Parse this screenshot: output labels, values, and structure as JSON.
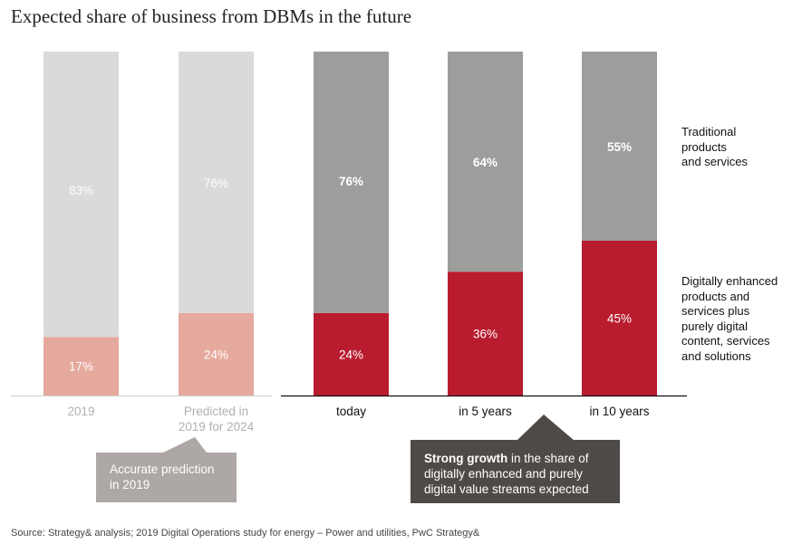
{
  "chart_data": {
    "type": "bar",
    "stacked": true,
    "title": "Expected share of business from DBMs in the future",
    "categories": [
      "2019",
      "Predicted in\n2019 for 2024",
      "today",
      "in 5 years",
      "in 10 years"
    ],
    "series": [
      {
        "name": "Digitally enhanced products and services plus purely digital content, services and solutions",
        "values": [
          17,
          24,
          24,
          36,
          45
        ]
      },
      {
        "name": "Traditional products and services",
        "values": [
          83,
          76,
          76,
          64,
          55
        ]
      }
    ],
    "ylim": [
      0,
      100
    ],
    "value_labels_suffix": "%",
    "colors": {
      "past_digital": "#e6a99d",
      "past_traditional": "#dadada",
      "digital": "#b81c2e",
      "traditional": "#9d9d9c",
      "past_label": "#b0b0b0",
      "label": "#111111"
    },
    "past_count": 2,
    "legend": {
      "traditional": "Traditional\nproducts\nand services",
      "digital": "Digitally enhanced\nproducts and\nservices plus\npurely digital\ncontent, services\nand solutions"
    }
  },
  "callouts": {
    "prediction": "Accurate prediction\nin 2019",
    "growth_bold": "Strong growth",
    "growth_rest": " in the share of\ndigitally enhanced and purely\ndigital value streams expected"
  },
  "source": "Source: Strategy& analysis; 2019 Digital Operations study for energy – Power and utilities, PwC Strategy&"
}
